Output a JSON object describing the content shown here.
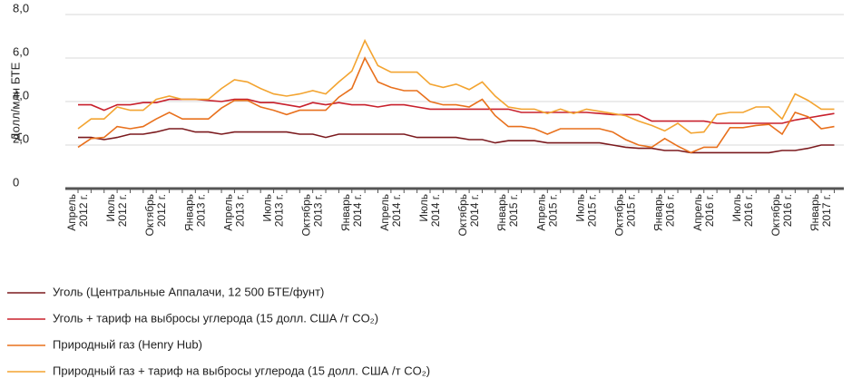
{
  "chart_data": {
    "type": "line",
    "y_label": "Долл/млн БТЕ",
    "categories": [
      "Апрель\n2012 г.",
      null,
      null,
      "Июль\n2012 г.",
      null,
      null,
      "Октябрь\n2012 г.",
      null,
      null,
      "Январь\n2013 г.",
      null,
      null,
      "Апрель\n2013 г.",
      null,
      null,
      "Июль\n2013 г.",
      null,
      null,
      "Октябрь\n2013 г.",
      null,
      null,
      "Январь\n2014 г.",
      null,
      null,
      "Апрель\n2014 г.",
      null,
      null,
      "Июль\n2014 г.",
      null,
      null,
      "Октябрь\n2014 г.",
      null,
      null,
      "Январь\n2015 г.",
      null,
      null,
      "Апрель\n2015 г.",
      null,
      null,
      "Июль\n2015 г.",
      null,
      null,
      "Октябрь\n2015 г.",
      null,
      null,
      "Январь\n2016 г.",
      null,
      null,
      "Апрель\n2016 г.",
      null,
      null,
      "Июль\n2016 г.",
      null,
      null,
      "Октябрь\n2016 г.",
      null,
      null,
      "Январь\n2017 г.",
      null
    ],
    "series": [
      {
        "name": "Уголь (Центральные Аппалачи, 12 500 БТЕ/фунт)",
        "color": "#7b1a1e",
        "values": [
          2.35,
          2.35,
          2.25,
          2.35,
          2.5,
          2.5,
          2.6,
          2.75,
          2.75,
          2.6,
          2.6,
          2.5,
          2.6,
          2.6,
          2.6,
          2.6,
          2.6,
          2.5,
          2.5,
          2.35,
          2.5,
          2.5,
          2.5,
          2.5,
          2.5,
          2.5,
          2.35,
          2.35,
          2.35,
          2.35,
          2.25,
          2.25,
          2.1,
          2.2,
          2.2,
          2.2,
          2.1,
          2.1,
          2.1,
          2.1,
          2.1,
          2.0,
          1.9,
          1.85,
          1.85,
          1.75,
          1.75,
          1.65,
          1.65,
          1.65,
          1.65,
          1.65,
          1.65,
          1.65,
          1.75,
          1.75,
          1.85,
          2.0,
          2.0
        ]
      },
      {
        "name": "Уголь + тариф на выбросы углерода (15 долл. США /т CO₂)",
        "color": "#c8202c",
        "values": [
          3.85,
          3.85,
          3.6,
          3.85,
          3.85,
          3.95,
          3.95,
          4.1,
          4.1,
          4.1,
          4.05,
          4.0,
          4.1,
          4.1,
          3.95,
          3.95,
          3.85,
          3.75,
          3.95,
          3.85,
          3.95,
          3.85,
          3.85,
          3.75,
          3.85,
          3.85,
          3.75,
          3.65,
          3.65,
          3.65,
          3.65,
          3.65,
          3.65,
          3.65,
          3.5,
          3.5,
          3.5,
          3.5,
          3.5,
          3.5,
          3.45,
          3.4,
          3.4,
          3.4,
          3.1,
          3.1,
          3.1,
          3.1,
          3.1,
          3.0,
          3.0,
          3.0,
          3.0,
          3.0,
          3.0,
          3.15,
          3.25,
          3.35,
          3.45
        ]
      },
      {
        "name": "Природный газ (Henry Hub)",
        "color": "#e8701c",
        "values": [
          1.9,
          2.3,
          2.35,
          2.85,
          2.75,
          2.85,
          3.2,
          3.5,
          3.2,
          3.2,
          3.2,
          3.7,
          4.05,
          4.05,
          3.75,
          3.6,
          3.4,
          3.6,
          3.6,
          3.6,
          4.2,
          4.6,
          6.0,
          4.9,
          4.65,
          4.5,
          4.5,
          4.0,
          3.85,
          3.85,
          3.75,
          4.1,
          3.35,
          2.85,
          2.85,
          2.75,
          2.5,
          2.75,
          2.75,
          2.75,
          2.75,
          2.6,
          2.25,
          2.0,
          1.9,
          2.3,
          1.95,
          1.65,
          1.9,
          1.9,
          2.8,
          2.8,
          2.9,
          2.95,
          2.5,
          3.5,
          3.3,
          2.75,
          2.85
        ]
      },
      {
        "name": "Природный газ + тариф на выбросы углерода (15 долл. США /т CO₂)",
        "color": "#f3a431",
        "values": [
          2.75,
          3.2,
          3.2,
          3.75,
          3.6,
          3.6,
          4.1,
          4.25,
          4.1,
          4.1,
          4.1,
          4.6,
          5.0,
          4.9,
          4.6,
          4.35,
          4.25,
          4.35,
          4.5,
          4.35,
          4.9,
          5.4,
          6.8,
          5.65,
          5.35,
          5.35,
          5.35,
          4.8,
          4.65,
          4.8,
          4.55,
          4.9,
          4.25,
          3.75,
          3.65,
          3.65,
          3.45,
          3.65,
          3.45,
          3.65,
          3.55,
          3.45,
          3.35,
          3.1,
          2.9,
          2.65,
          3.0,
          2.55,
          2.6,
          3.4,
          3.5,
          3.5,
          3.75,
          3.75,
          3.2,
          4.35,
          4.05,
          3.65,
          3.65
        ]
      }
    ],
    "ylim": [
      0,
      8
    ],
    "yticks": [
      0,
      {
        "value": 2,
        "label": "2,0"
      },
      {
        "value": 4,
        "label": "4,0"
      },
      {
        "value": 6,
        "label": "6,0"
      },
      {
        "value": 8,
        "label": "8,0"
      }
    ],
    "grid": true
  }
}
